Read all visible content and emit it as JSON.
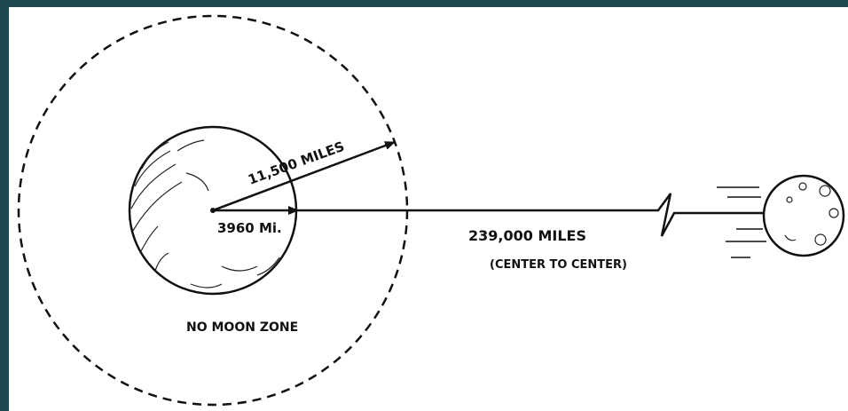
{
  "labels": {
    "radius_zone": "11,500 MILES",
    "radius_earth": "3960 Mi.",
    "distance": "239,000 MILES",
    "distance_note": "(CENTER TO CENTER)",
    "zone": "NO MOON ZONE"
  }
}
